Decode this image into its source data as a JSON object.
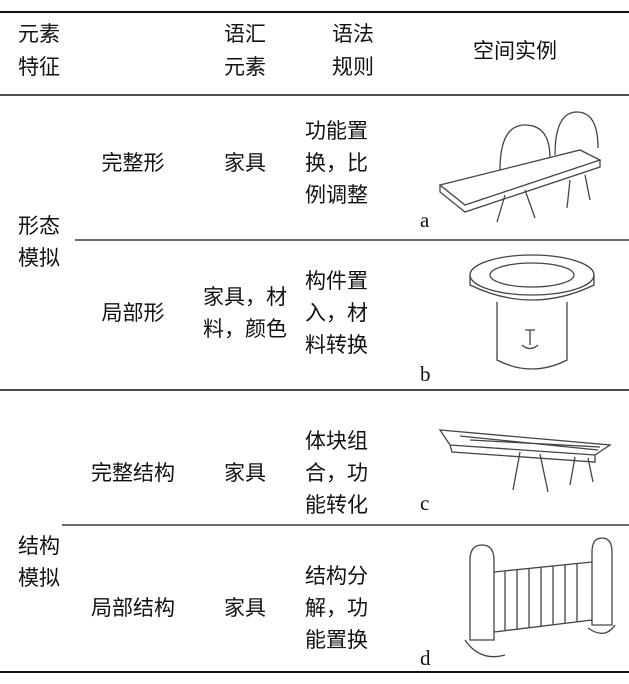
{
  "table": {
    "header": {
      "feature": [
        "元素",
        "特征"
      ],
      "elements": [
        "语汇",
        "元素"
      ],
      "rules": [
        "语法",
        "规则"
      ],
      "example": "空间实例"
    },
    "groups": [
      {
        "label": [
          "形态",
          "模拟"
        ],
        "rows": [
          {
            "form": "完整形",
            "elements": [
              "家具"
            ],
            "rules": [
              "功能置",
              "换，比",
              "例调整"
            ],
            "tag": "a"
          },
          {
            "form": "局部形",
            "elements": [
              "家具，材",
              "料，颜色"
            ],
            "rules": [
              "构件置",
              "入，材",
              "料转换"
            ],
            "tag": "b"
          }
        ]
      },
      {
        "label": [
          "结构",
          "模拟"
        ],
        "rows": [
          {
            "form": "完整结构",
            "elements": [
              "家具"
            ],
            "rules": [
              "体块组",
              "合，功",
              "能转化"
            ],
            "tag": "c"
          },
          {
            "form": "局部结构",
            "elements": [
              "家具"
            ],
            "rules": [
              "结构分",
              "解，功",
              "能置换"
            ],
            "tag": "d"
          }
        ]
      }
    ]
  }
}
